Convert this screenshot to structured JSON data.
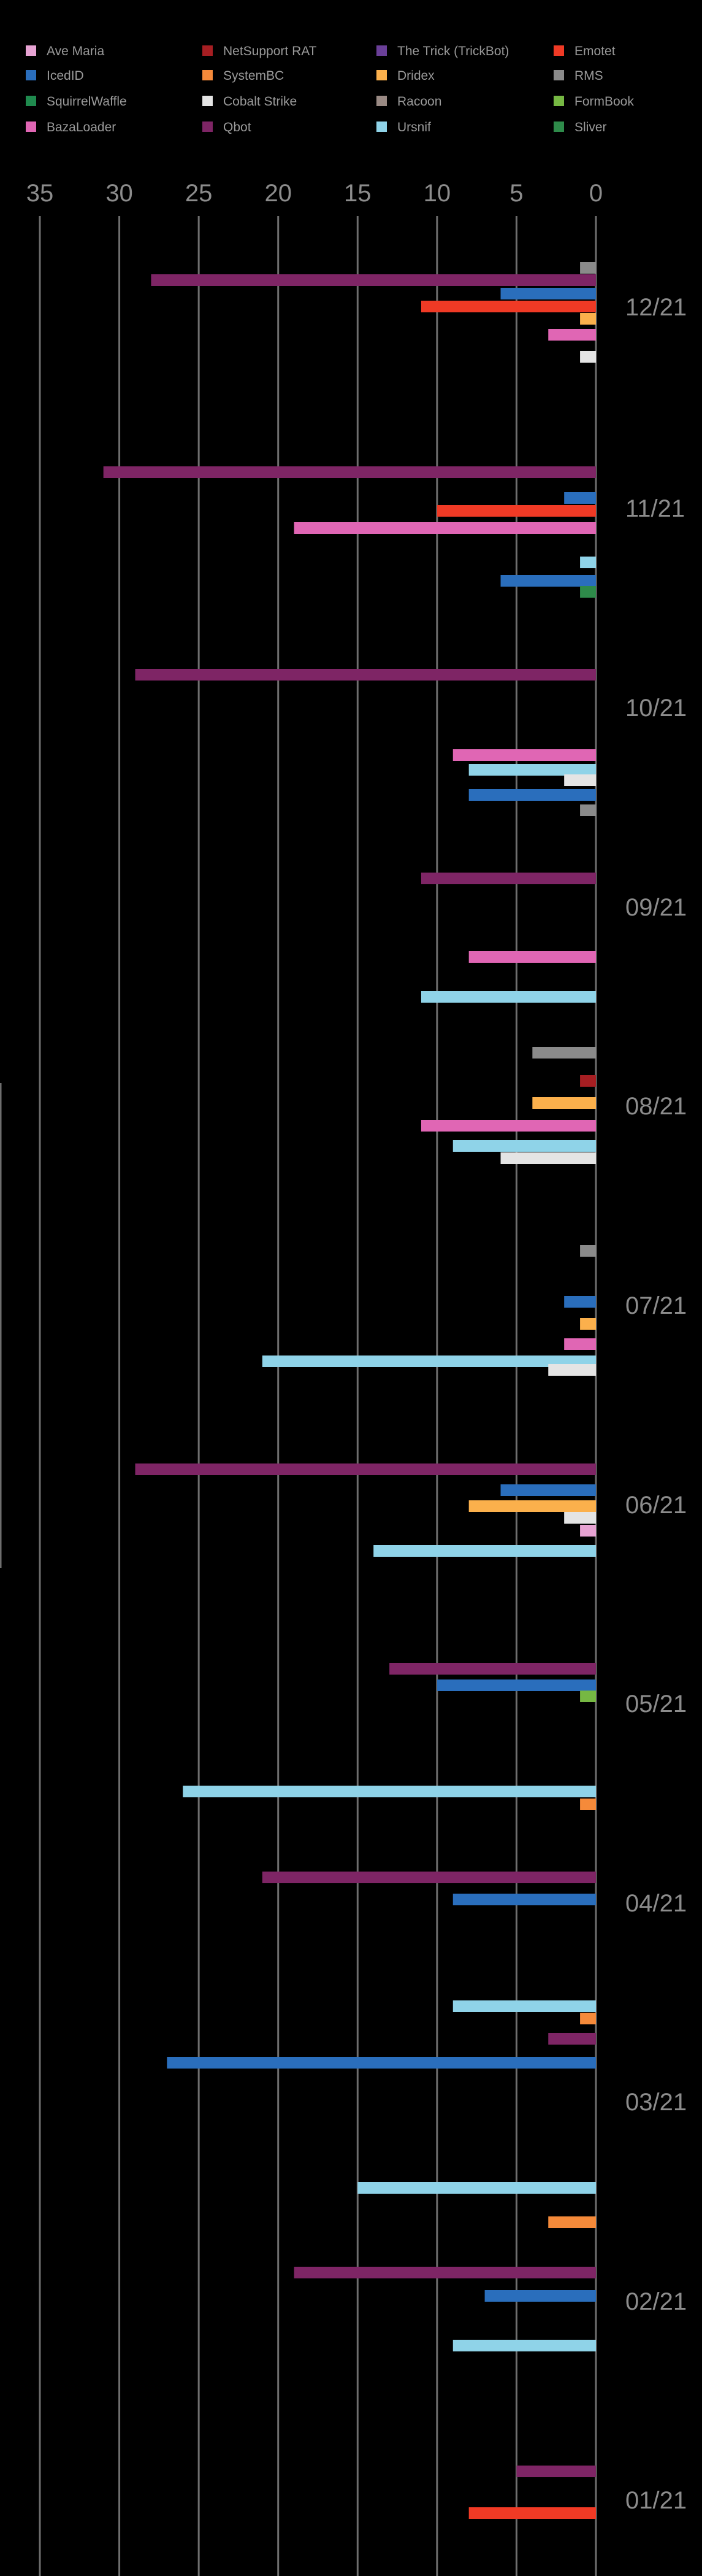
{
  "colors": {
    "background": "#000000",
    "axis_text": "#8c8c8c",
    "grid": "#6e6e6e"
  },
  "legend": [
    {
      "label": "Ave Maria",
      "color": "#e7a3d3"
    },
    {
      "label": "NetSupport RAT",
      "color": "#a61e22"
    },
    {
      "label": "The Trick (TrickBot)",
      "color": "#6a3f98"
    },
    {
      "label": "Emotet",
      "color": "#f03a25"
    },
    {
      "label": "IcedID",
      "color": "#2a6ebc"
    },
    {
      "label": "SystemBC",
      "color": "#f58a3a"
    },
    {
      "label": "Dridex",
      "color": "#fbb04c"
    },
    {
      "label": "RMS",
      "color": "#8a8a8a"
    },
    {
      "label": "SquirrelWaffle",
      "color": "#1f8a4e"
    },
    {
      "label": "Cobalt Strike",
      "color": "#e4e4e4"
    },
    {
      "label": "Racoon",
      "color": "#9a8a84"
    },
    {
      "label": "FormBook",
      "color": "#76b843"
    },
    {
      "label": "BazaLoader",
      "color": "#e066b4"
    },
    {
      "label": "Qbot",
      "color": "#7e2565"
    },
    {
      "label": "Ursnif",
      "color": "#8fd3e8"
    },
    {
      "label": "Sliver",
      "color": "#2e8b4a"
    }
  ],
  "chart_data": {
    "type": "bar",
    "orientation": "horizontal",
    "x_direction": "reversed",
    "xlim": [
      0,
      35
    ],
    "x_ticks": [
      "35",
      "30",
      "25",
      "20",
      "15",
      "10",
      "5",
      "0"
    ],
    "grid": true,
    "legend_position": "top",
    "months": [
      {
        "label": "12/21",
        "bars": [
          {
            "series": "RMS",
            "value": 1
          },
          {
            "series": "Qbot",
            "value": 28
          },
          {
            "series": "IcedID",
            "value": 6
          },
          {
            "series": "Emotet",
            "value": 11
          },
          {
            "series": "Dridex",
            "value": 1
          },
          {
            "series": "BazaLoader",
            "value": 3
          },
          {
            "series": "Cobalt Strike",
            "value": 1
          }
        ]
      },
      {
        "label": "11/21",
        "bars": [
          {
            "series": "Qbot",
            "value": 31
          },
          {
            "series": "IcedID",
            "value": 2
          },
          {
            "series": "Emotet",
            "value": 10
          },
          {
            "series": "BazaLoader",
            "value": 19
          },
          {
            "series": "Ursnif",
            "value": 1
          },
          {
            "series": "IcedID",
            "value": 6
          },
          {
            "series": "Sliver",
            "value": 1
          }
        ]
      },
      {
        "label": "10/21",
        "bars": [
          {
            "series": "Qbot",
            "value": 29
          },
          {
            "series": "BazaLoader",
            "value": 9
          },
          {
            "series": "Ursnif",
            "value": 8
          },
          {
            "series": "Cobalt Strike",
            "value": 2
          },
          {
            "series": "IcedID",
            "value": 8
          },
          {
            "series": "RMS",
            "value": 1
          }
        ]
      },
      {
        "label": "09/21",
        "bars": [
          {
            "series": "Qbot",
            "value": 11
          },
          {
            "series": "BazaLoader",
            "value": 8
          },
          {
            "series": "Ursnif",
            "value": 11
          }
        ]
      },
      {
        "label": "08/21",
        "bars": [
          {
            "series": "RMS",
            "value": 4
          },
          {
            "series": "NetSupport RAT",
            "value": 1
          },
          {
            "series": "Dridex",
            "value": 4
          },
          {
            "series": "BazaLoader",
            "value": 11
          },
          {
            "series": "Ursnif",
            "value": 9
          },
          {
            "series": "Cobalt Strike",
            "value": 6
          }
        ]
      },
      {
        "label": "07/21",
        "bars": [
          {
            "series": "RMS",
            "value": 1
          },
          {
            "series": "IcedID",
            "value": 2
          },
          {
            "series": "Dridex",
            "value": 1
          },
          {
            "series": "BazaLoader",
            "value": 2
          },
          {
            "series": "Ursnif",
            "value": 21
          },
          {
            "series": "Cobalt Strike",
            "value": 3
          }
        ]
      },
      {
        "label": "06/21",
        "bars": [
          {
            "series": "Qbot",
            "value": 29
          },
          {
            "series": "IcedID",
            "value": 6
          },
          {
            "series": "Dridex",
            "value": 8
          },
          {
            "series": "Cobalt Strike",
            "value": 2
          },
          {
            "series": "Ave Maria",
            "value": 1
          },
          {
            "series": "Ursnif",
            "value": 14
          }
        ]
      },
      {
        "label": "05/21",
        "bars": [
          {
            "series": "Qbot",
            "value": 13
          },
          {
            "series": "IcedID",
            "value": 10
          },
          {
            "series": "FormBook",
            "value": 1
          }
        ]
      },
      {
        "label": "04/21",
        "bars": [
          {
            "series": "Ursnif",
            "value": 26
          },
          {
            "series": "SystemBC",
            "value": 1
          },
          {
            "series": "Qbot",
            "value": 21
          },
          {
            "series": "IcedID",
            "value": 9
          }
        ]
      },
      {
        "label": "03/21",
        "bars": [
          {
            "series": "Ursnif",
            "value": 9
          },
          {
            "series": "SystemBC",
            "value": 1
          },
          {
            "series": "Qbot",
            "value": 3
          },
          {
            "series": "IcedID",
            "value": 27
          }
        ]
      },
      {
        "label": "02/21",
        "bars": [
          {
            "series": "Ursnif",
            "value": 15
          },
          {
            "series": "SystemBC",
            "value": 3
          },
          {
            "series": "Qbot",
            "value": 19
          },
          {
            "series": "IcedID",
            "value": 7
          },
          {
            "series": "Ursnif",
            "value": 9
          }
        ]
      },
      {
        "label": "01/21",
        "bars": [
          {
            "series": "Qbot",
            "value": 5
          },
          {
            "series": "Emotet",
            "value": 8
          }
        ]
      }
    ]
  }
}
